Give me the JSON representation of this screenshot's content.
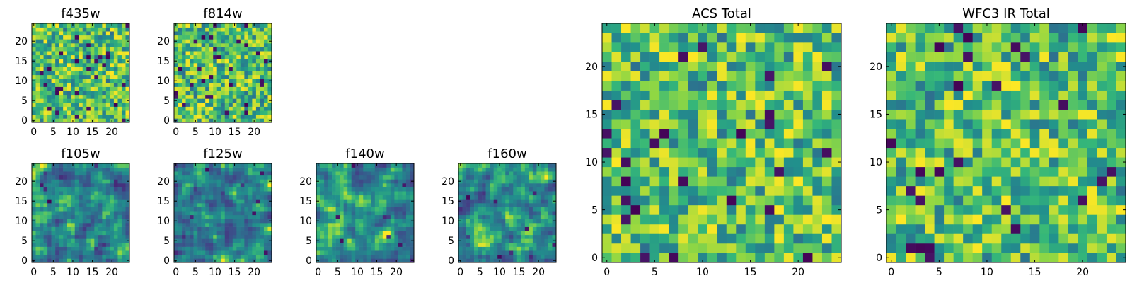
{
  "figure": {
    "background": "#ffffff",
    "colormap": "viridis"
  },
  "chart_data": [
    {
      "type": "heatmap",
      "title": "f435w",
      "grid": [
        25,
        25
      ],
      "xticks": [
        "0",
        "5",
        "10",
        "15",
        "20"
      ],
      "yticks": [
        "0",
        "5",
        "10",
        "15",
        "20"
      ],
      "xlim": [
        -0.5,
        24.5
      ],
      "ylim": [
        -0.5,
        24.5
      ],
      "grid_lines": false,
      "style": "noise",
      "seed": 11
    },
    {
      "type": "heatmap",
      "title": "f814w",
      "grid": [
        25,
        25
      ],
      "xticks": [
        "0",
        "5",
        "10",
        "15",
        "20"
      ],
      "yticks": [
        "0",
        "5",
        "10",
        "15",
        "20"
      ],
      "xlim": [
        -0.5,
        24.5
      ],
      "ylim": [
        -0.5,
        24.5
      ],
      "grid_lines": false,
      "style": "noise",
      "seed": 23
    },
    {
      "type": "heatmap",
      "title": "f105w",
      "grid": [
        25,
        25
      ],
      "xticks": [
        "0",
        "5",
        "10",
        "15",
        "20"
      ],
      "yticks": [
        "0",
        "5",
        "10",
        "15",
        "20"
      ],
      "xlim": [
        -0.5,
        24.5
      ],
      "ylim": [
        -0.5,
        24.5
      ],
      "grid_lines": false,
      "style": "smooth",
      "seed": 37
    },
    {
      "type": "heatmap",
      "title": "f125w",
      "grid": [
        25,
        25
      ],
      "xticks": [
        "0",
        "5",
        "10",
        "15",
        "20"
      ],
      "yticks": [
        "0",
        "5",
        "10",
        "15",
        "20"
      ],
      "xlim": [
        -0.5,
        24.5
      ],
      "ylim": [
        -0.5,
        24.5
      ],
      "grid_lines": false,
      "style": "smooth",
      "seed": 41
    },
    {
      "type": "heatmap",
      "title": "f140w",
      "grid": [
        25,
        25
      ],
      "xticks": [
        "0",
        "5",
        "10",
        "15",
        "20"
      ],
      "yticks": [
        "0",
        "5",
        "10",
        "15",
        "20"
      ],
      "xlim": [
        -0.5,
        24.5
      ],
      "ylim": [
        -0.5,
        24.5
      ],
      "grid_lines": false,
      "style": "smooth",
      "seed": 53
    },
    {
      "type": "heatmap",
      "title": "f160w",
      "grid": [
        25,
        25
      ],
      "xticks": [
        "0",
        "5",
        "10",
        "15",
        "20"
      ],
      "yticks": [
        "0",
        "5",
        "10",
        "15",
        "20"
      ],
      "xlim": [
        -0.5,
        24.5
      ],
      "ylim": [
        -0.5,
        24.5
      ],
      "grid_lines": false,
      "style": "smooth",
      "seed": 67
    },
    {
      "type": "heatmap",
      "title": "ACS Total",
      "grid": [
        25,
        25
      ],
      "xticks": [
        "0",
        "5",
        "10",
        "15",
        "20"
      ],
      "yticks": [
        "0",
        "5",
        "10",
        "15",
        "20"
      ],
      "xlim": [
        -0.5,
        24.5
      ],
      "ylim": [
        -0.5,
        24.5
      ],
      "grid_lines": false,
      "style": "noise",
      "seed": 79
    },
    {
      "type": "heatmap",
      "title": "WFC3 IR Total",
      "grid": [
        25,
        25
      ],
      "xticks": [
        "0",
        "5",
        "10",
        "15",
        "20"
      ],
      "yticks": [
        "0",
        "5",
        "10",
        "15",
        "20"
      ],
      "xlim": [
        -0.5,
        24.5
      ],
      "ylim": [
        -0.5,
        24.5
      ],
      "grid_lines": false,
      "style": "noise",
      "seed": 97
    }
  ]
}
